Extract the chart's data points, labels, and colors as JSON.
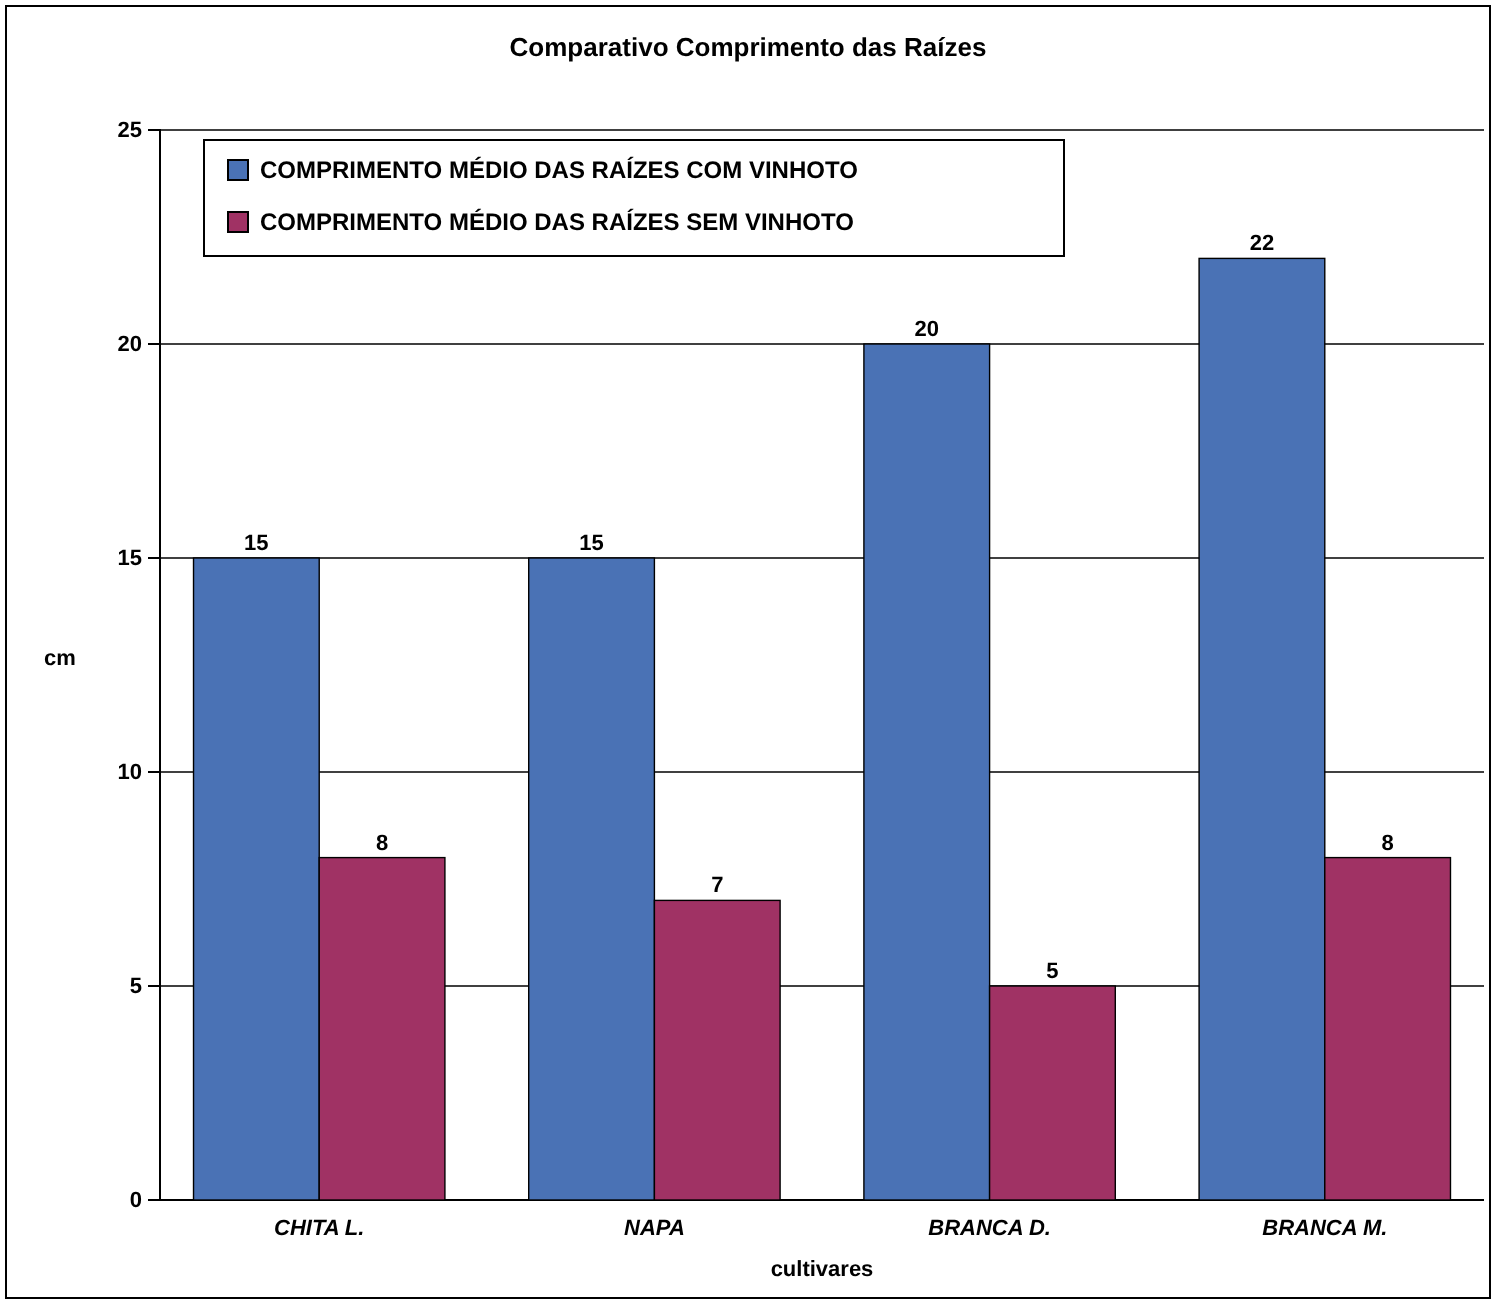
{
  "chart_data": {
    "type": "bar",
    "title": "Comparativo Comprimento das Raízes",
    "xlabel": "cultivares",
    "ylabel": "cm",
    "categories": [
      "CHITA L.",
      "NAPA",
      "BRANCA D.",
      "BRANCA M."
    ],
    "series": [
      {
        "name": "COMPRIMENTO MÉDIO DAS RAÍZES COM VINHOTO",
        "color": "#4a72b5",
        "values": [
          15,
          15,
          20,
          22
        ]
      },
      {
        "name": "COMPRIMENTO MÉDIO DAS RAÍZES SEM VINHOTO",
        "color": "#a03264",
        "values": [
          8,
          7,
          5,
          8
        ]
      }
    ],
    "ylim": [
      0,
      25
    ],
    "yticks": [
      0,
      5,
      10,
      15,
      20,
      25
    ],
    "grid": "y",
    "legend": "top left",
    "data_labels": true
  }
}
